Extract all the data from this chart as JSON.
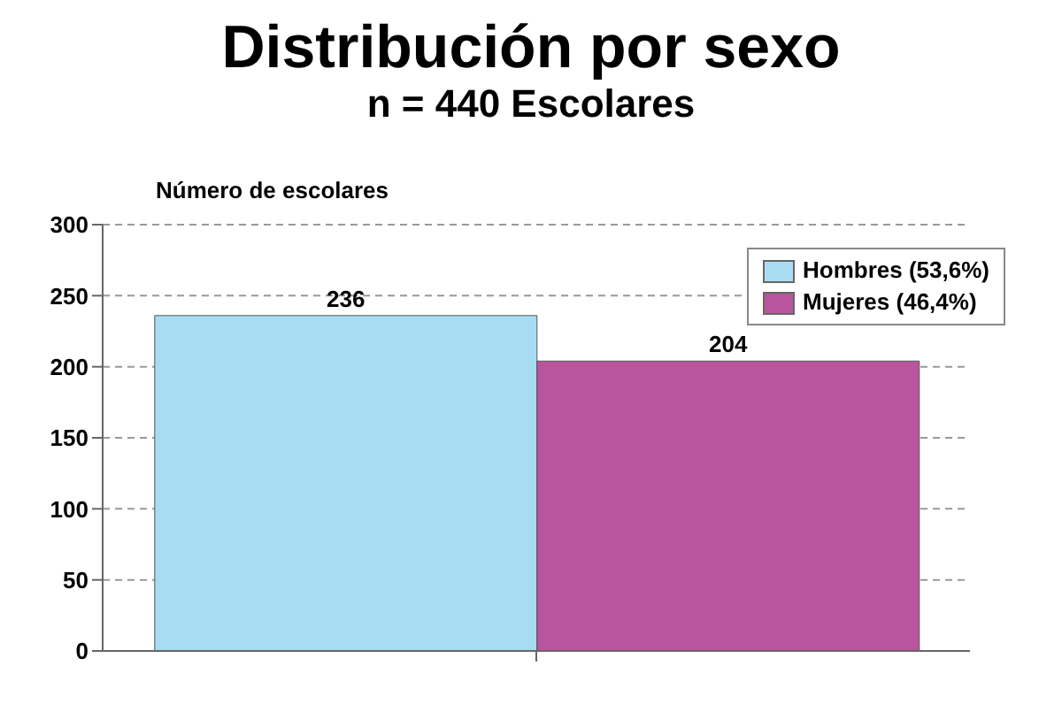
{
  "chart_data": {
    "type": "bar",
    "title": "Distribución por sexo",
    "subtitle": "n = 440 Escolares",
    "ylabel": "Número de escolares",
    "categories": [
      null
    ],
    "series": [
      {
        "name": "Hombres  (53,6%)",
        "color": "#a9dcf2",
        "values": [
          236
        ]
      },
      {
        "name": "Mujeres  (46,4%)",
        "color": "#b8559c",
        "values": [
          204
        ]
      }
    ],
    "ylim": [
      0,
      300
    ],
    "yticks": [
      0,
      50,
      100,
      150,
      200,
      250,
      300
    ],
    "grid": "y",
    "legend": "top right",
    "data_labels": true
  }
}
